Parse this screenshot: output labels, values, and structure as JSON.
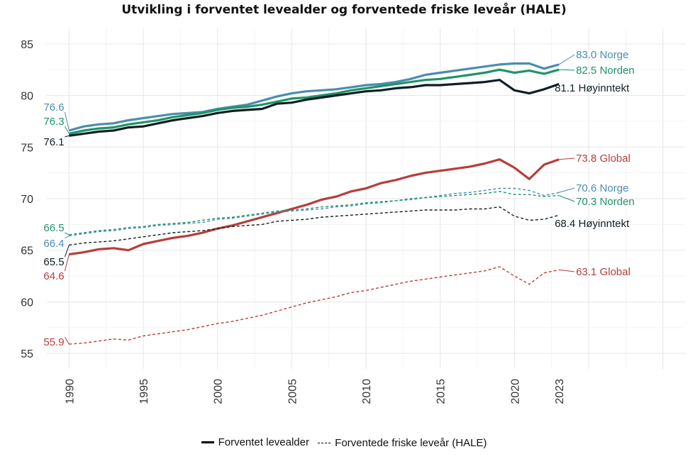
{
  "chart_data": {
    "type": "line",
    "title": "Utvikling i forventet levealder og forventede friske leveår (HALE)",
    "xlabel": "",
    "ylabel": "",
    "xlim": [
      1988.5,
      2031.5
    ],
    "ylim": [
      53.5,
      86.5
    ],
    "x": [
      1990,
      1991,
      1992,
      1993,
      1994,
      1995,
      1996,
      1997,
      1998,
      1999,
      2000,
      2001,
      2002,
      2003,
      2004,
      2005,
      2006,
      2007,
      2008,
      2009,
      2010,
      2011,
      2012,
      2013,
      2014,
      2015,
      2016,
      2017,
      2018,
      2019,
      2020,
      2021,
      2022,
      2023
    ],
    "x_ticks": [
      {
        "value": 1990,
        "label": "1990"
      },
      {
        "value": 1995,
        "label": "1995"
      },
      {
        "value": 2000,
        "label": "2000"
      },
      {
        "value": 2005,
        "label": "2005"
      },
      {
        "value": 2010,
        "label": "2010"
      },
      {
        "value": 2015,
        "label": "2015"
      },
      {
        "value": 2020,
        "label": "2020"
      },
      {
        "value": 2023,
        "label": "2023"
      }
    ],
    "y_ticks": [
      {
        "value": 55,
        "label": "55"
      },
      {
        "value": 60,
        "label": "60"
      },
      {
        "value": 65,
        "label": "65"
      },
      {
        "value": 70,
        "label": "70"
      },
      {
        "value": 75,
        "label": "75"
      },
      {
        "value": 80,
        "label": "80"
      },
      {
        "value": 85,
        "label": "85"
      }
    ],
    "grid": true,
    "legend_position": "bottom",
    "legend": [
      {
        "label": "Forventet levealder",
        "style": "solid"
      },
      {
        "label": "Forventede friske leveår (HALE)",
        "style": "dashed"
      }
    ],
    "series": [
      {
        "name": "Norge",
        "kind": "Forventet levealder",
        "style": "solid",
        "color": "#4a8db0",
        "start_label": "76.6",
        "end_label": "83.0 Norge",
        "values": [
          76.6,
          77.0,
          77.2,
          77.3,
          77.6,
          77.8,
          78.0,
          78.2,
          78.3,
          78.4,
          78.7,
          78.9,
          79.1,
          79.5,
          79.9,
          80.2,
          80.4,
          80.5,
          80.6,
          80.8,
          81.0,
          81.1,
          81.3,
          81.6,
          82.0,
          82.2,
          82.4,
          82.6,
          82.8,
          83.0,
          83.1,
          83.1,
          82.6,
          83.0
        ]
      },
      {
        "name": "Norden",
        "kind": "Forventet levealder",
        "style": "solid",
        "color": "#1f9467",
        "start_label": "76.3",
        "end_label": "82.5 Norden",
        "values": [
          76.3,
          76.6,
          76.8,
          76.9,
          77.2,
          77.4,
          77.6,
          77.9,
          78.1,
          78.3,
          78.6,
          78.8,
          78.9,
          79.1,
          79.4,
          79.7,
          79.8,
          80.0,
          80.2,
          80.5,
          80.7,
          80.9,
          81.1,
          81.3,
          81.5,
          81.6,
          81.8,
          82.0,
          82.2,
          82.5,
          82.2,
          82.4,
          82.1,
          82.5
        ]
      },
      {
        "name": "Høyinntekt",
        "kind": "Forventet levealder",
        "style": "solid",
        "color": "#0f1e24",
        "start_label": "76.1",
        "end_label": "81.1 Høyinntekt",
        "values": [
          76.1,
          76.3,
          76.5,
          76.6,
          76.9,
          77.0,
          77.3,
          77.6,
          77.8,
          78.0,
          78.3,
          78.5,
          78.6,
          78.7,
          79.2,
          79.3,
          79.6,
          79.8,
          80.0,
          80.2,
          80.4,
          80.5,
          80.7,
          80.8,
          81.0,
          81.0,
          81.1,
          81.2,
          81.3,
          81.5,
          80.5,
          80.2,
          80.6,
          81.1
        ]
      },
      {
        "name": "Global",
        "kind": "Forventet levealder",
        "style": "solid",
        "color": "#b63e3a",
        "start_label": "64.6",
        "end_label": "73.8 Global",
        "values": [
          64.6,
          64.8,
          65.1,
          65.2,
          65.0,
          65.6,
          65.9,
          66.2,
          66.4,
          66.7,
          67.1,
          67.4,
          67.8,
          68.2,
          68.6,
          69.0,
          69.4,
          69.9,
          70.2,
          70.7,
          71.0,
          71.5,
          71.8,
          72.2,
          72.5,
          72.7,
          72.9,
          73.1,
          73.4,
          73.8,
          73.0,
          71.9,
          73.3,
          73.8
        ]
      },
      {
        "name": "Norge",
        "kind": "Forventede friske leveår (HALE)",
        "style": "dashed",
        "color": "#4a8db0",
        "start_label": "66.4",
        "end_label": "70.6 Norge",
        "values": [
          66.4,
          66.6,
          66.8,
          66.9,
          67.1,
          67.2,
          67.4,
          67.5,
          67.6,
          67.7,
          68.0,
          68.1,
          68.3,
          68.5,
          68.7,
          68.8,
          68.9,
          69.0,
          69.2,
          69.3,
          69.5,
          69.6,
          69.8,
          69.9,
          70.1,
          70.3,
          70.5,
          70.6,
          70.8,
          71.0,
          71.0,
          70.8,
          70.3,
          70.6
        ]
      },
      {
        "name": "Norden",
        "kind": "Forventede friske leveår (HALE)",
        "style": "dashed",
        "color": "#1f9467",
        "start_label": "66.5",
        "end_label": "70.3 Norden",
        "values": [
          66.5,
          66.7,
          66.9,
          67.0,
          67.2,
          67.3,
          67.5,
          67.6,
          67.7,
          67.9,
          68.1,
          68.2,
          68.4,
          68.6,
          68.8,
          68.9,
          69.0,
          69.2,
          69.3,
          69.4,
          69.6,
          69.7,
          69.8,
          70.0,
          70.1,
          70.2,
          70.3,
          70.4,
          70.5,
          70.7,
          70.4,
          70.4,
          70.2,
          70.3
        ]
      },
      {
        "name": "Høyinntekt",
        "kind": "Forventede friske leveår (HALE)",
        "style": "dashed",
        "color": "#0f1e24",
        "start_label": "65.5",
        "end_label": "68.4 Høyinntekt",
        "values": [
          65.5,
          65.7,
          65.8,
          65.9,
          66.1,
          66.3,
          66.5,
          66.7,
          66.8,
          66.9,
          67.1,
          67.3,
          67.4,
          67.5,
          67.8,
          67.9,
          68.0,
          68.2,
          68.3,
          68.4,
          68.5,
          68.6,
          68.7,
          68.8,
          68.9,
          68.9,
          68.9,
          69.0,
          69.0,
          69.2,
          68.3,
          67.9,
          68.0,
          68.4
        ]
      },
      {
        "name": "Global",
        "kind": "Forventede friske leveår (HALE)",
        "style": "dashed",
        "color": "#b63e3a",
        "start_label": "55.9",
        "end_label": "63.1 Global",
        "values": [
          55.9,
          56.0,
          56.2,
          56.4,
          56.3,
          56.7,
          56.9,
          57.1,
          57.3,
          57.6,
          57.9,
          58.1,
          58.4,
          58.7,
          59.1,
          59.5,
          59.9,
          60.2,
          60.5,
          60.9,
          61.1,
          61.4,
          61.7,
          62.0,
          62.2,
          62.4,
          62.6,
          62.8,
          63.0,
          63.4,
          62.5,
          61.7,
          62.8,
          63.1
        ]
      }
    ]
  }
}
